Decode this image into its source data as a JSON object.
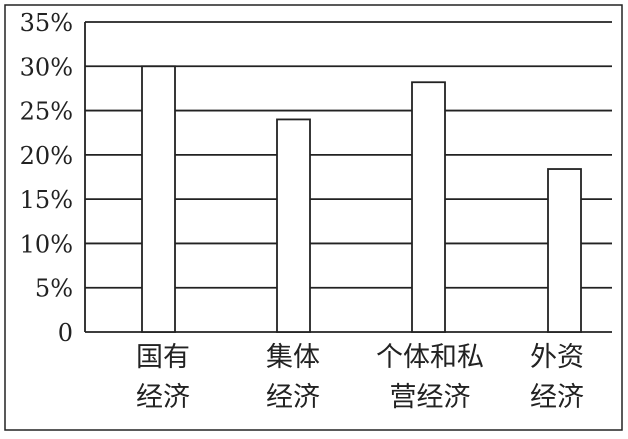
{
  "chart_data": {
    "type": "bar",
    "title": "",
    "xlabel": "",
    "ylabel": "",
    "categories": [
      [
        "国有",
        "经济"
      ],
      [
        "集体",
        "经济"
      ],
      [
        "个体和私",
        "营经济"
      ],
      [
        "外资",
        "经济"
      ]
    ],
    "values": [
      30,
      24,
      28.2,
      18.4
    ],
    "ylim": [
      0,
      35
    ],
    "yticks": [
      0,
      5,
      10,
      15,
      20,
      25,
      30,
      35
    ],
    "ytick_labels": [
      "0",
      "5%",
      "10%",
      "15%",
      "20%",
      "25%",
      "30%",
      "35%"
    ],
    "grid": true,
    "bar_fill": "#ffffff",
    "line_color": "#222222"
  }
}
